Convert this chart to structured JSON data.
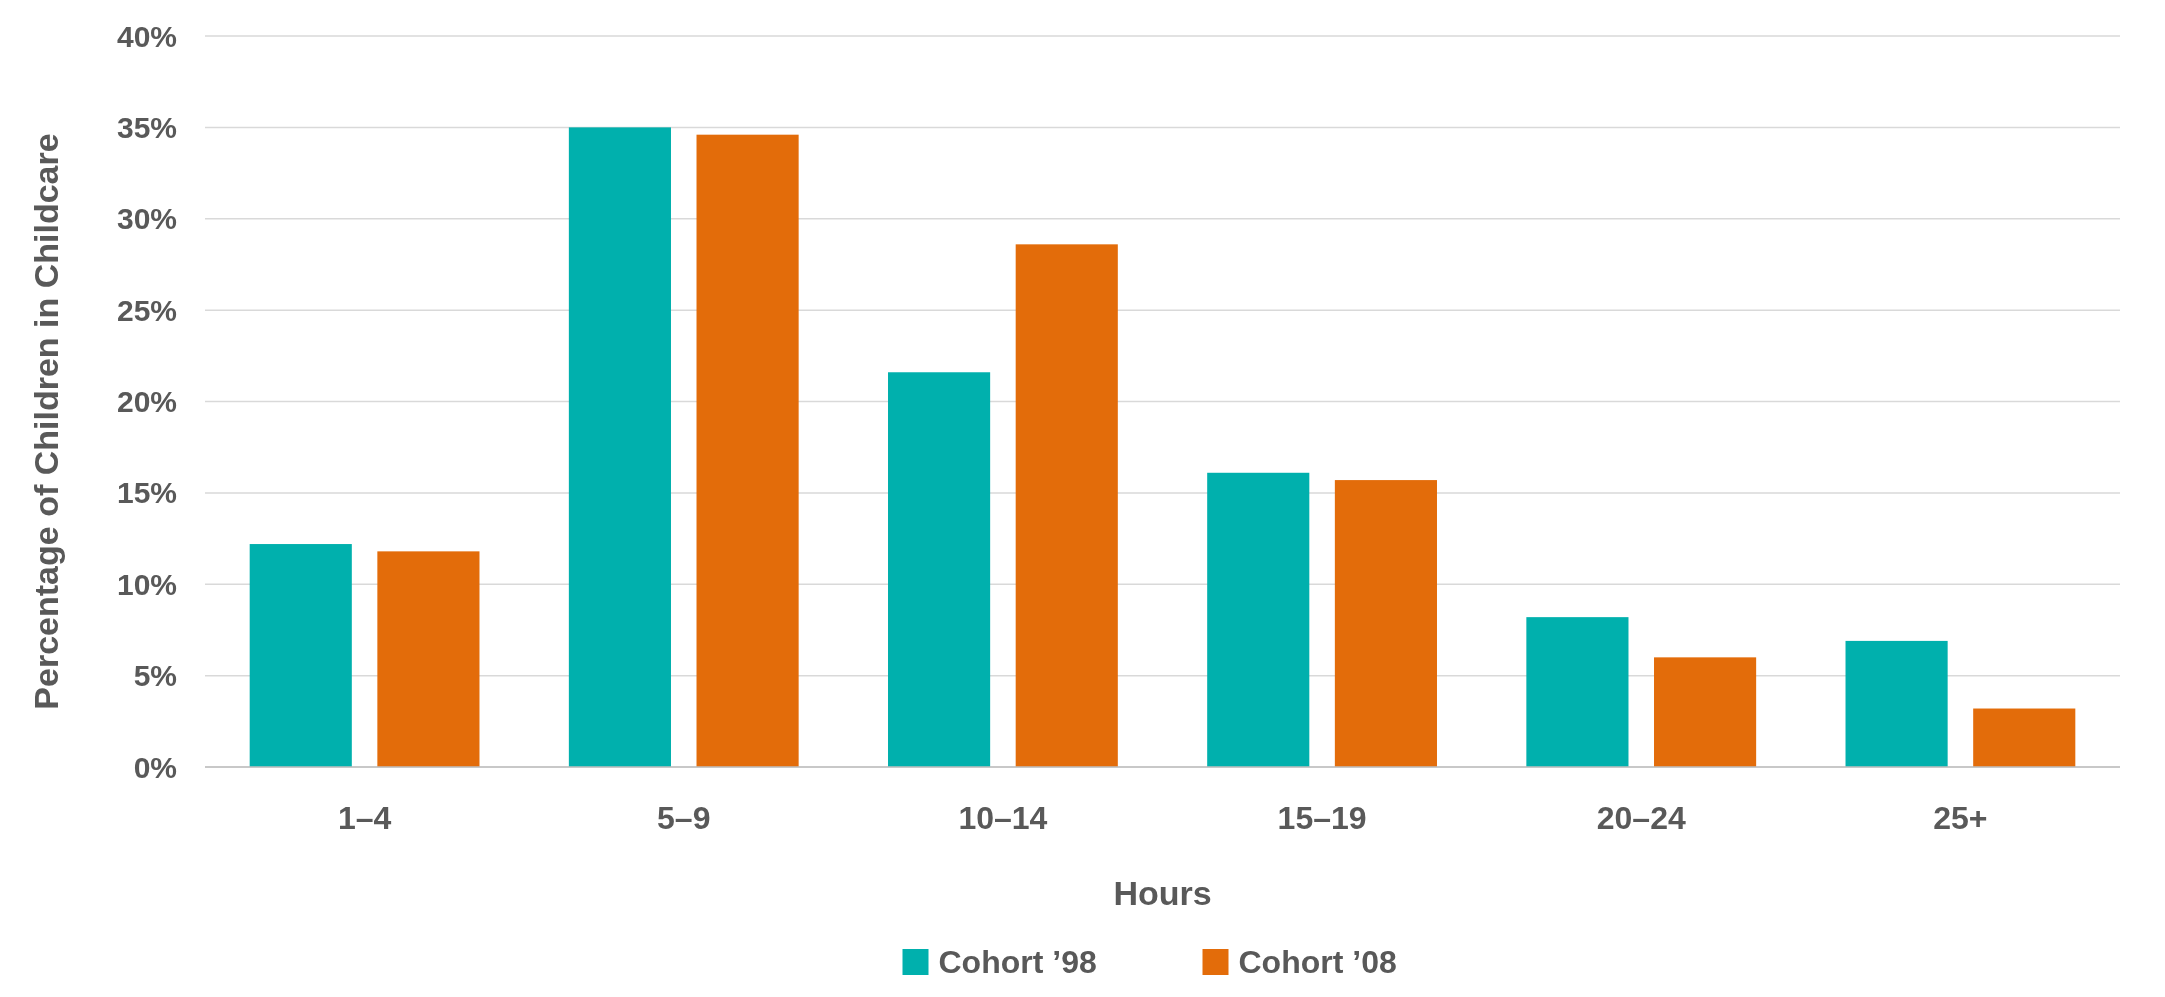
{
  "chart_data": {
    "type": "bar",
    "xlabel": "Hours",
    "ylabel": "Percentage of Children in Childcare",
    "categories": [
      "1–4",
      "5–9",
      "10–14",
      "15–19",
      "20–24",
      "25+"
    ],
    "series": [
      {
        "name": "Cohort ’98",
        "color": "#00b0ad",
        "values": [
          12.2,
          35.0,
          21.6,
          16.1,
          8.2,
          6.9
        ]
      },
      {
        "name": "Cohort ’08",
        "color": "#e36c0a",
        "values": [
          11.8,
          34.6,
          28.6,
          15.7,
          6.0,
          3.2
        ]
      }
    ],
    "ylim": [
      0,
      40
    ],
    "yticks": [
      {
        "value": 0,
        "label": "0%"
      },
      {
        "value": 5,
        "label": "5%"
      },
      {
        "value": 10,
        "label": "10%"
      },
      {
        "value": 15,
        "label": "15%"
      },
      {
        "value": 20,
        "label": "20%"
      },
      {
        "value": 25,
        "label": "25%"
      },
      {
        "value": 30,
        "label": "30%"
      },
      {
        "value": 35,
        "label": "35%"
      },
      {
        "value": 40,
        "label": "40%"
      }
    ],
    "grid": "y",
    "legend": "bottom"
  }
}
